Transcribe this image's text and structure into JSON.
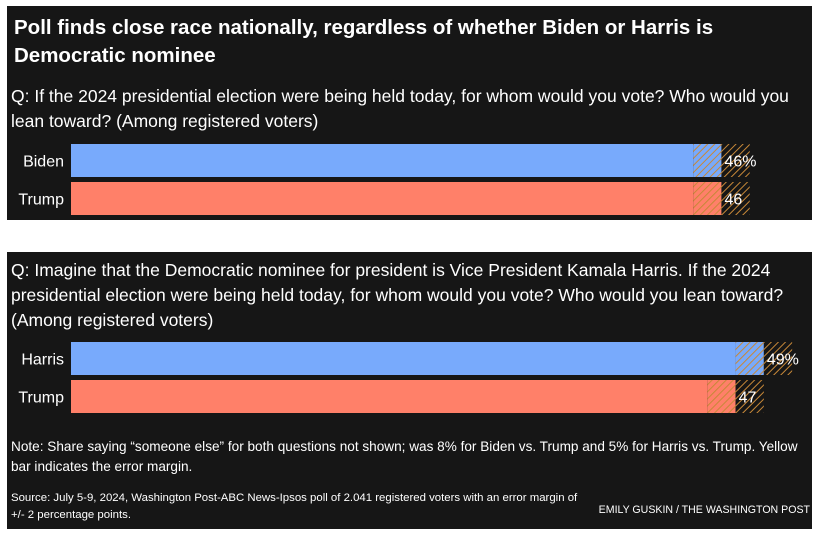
{
  "headline": "Poll finds close race nationally, regardless of whether Biden or Harris is Democratic nominee",
  "colors": {
    "panel_bg": "#161616",
    "democrat": "#78aafc",
    "republican": "#ff8069",
    "error_hatch": "#c78838",
    "text": "#ffffff"
  },
  "chart_data": [
    {
      "type": "bar",
      "orientation": "horizontal",
      "title": "Q: If the 2024 presidential election were being held today, for whom would you vote? Who would you lean toward? (Among registered voters)",
      "categories": [
        "Biden",
        "Trump"
      ],
      "values": [
        46,
        46
      ],
      "value_labels": [
        "46%",
        "46"
      ],
      "error_margin": 2,
      "xlim": [
        0,
        50
      ],
      "colors": [
        "#78aafc",
        "#ff8069"
      ]
    },
    {
      "type": "bar",
      "orientation": "horizontal",
      "title": "Q: Imagine that the Democratic nominee for president is Vice President Kamala Harris. If the 2024 presidential election were being held today, for whom would you vote? Who would you lean toward? (Among registered voters)",
      "categories": [
        "Harris",
        "Trump"
      ],
      "values": [
        49,
        47
      ],
      "value_labels": [
        "49%",
        "47"
      ],
      "error_margin": 2,
      "xlim": [
        0,
        50
      ],
      "colors": [
        "#78aafc",
        "#ff8069"
      ]
    }
  ],
  "note": "Note: Share saying “someone else” for both questions not shown; was 8% for Biden vs. Trump and 5% for Harris vs. Trump. Yellow bar indicates the error margin.",
  "source": "Source: July 5-9, 2024, Washington Post-ABC News-Ipsos poll of 2.041 registered voters with an error margin of +/- 2 percentage points.",
  "credit": "EMILY GUSKIN / THE WASHINGTON POST"
}
